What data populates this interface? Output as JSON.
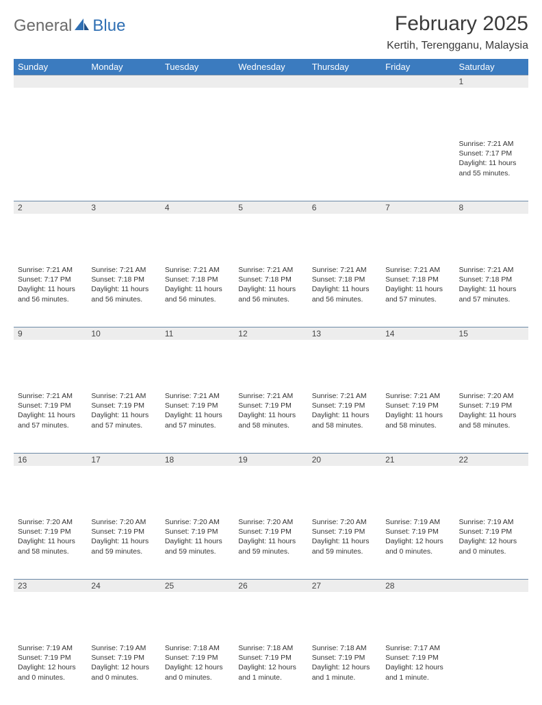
{
  "logo": {
    "text1": "General",
    "text2": "Blue"
  },
  "title": "February 2025",
  "location": "Kertih, Terengganu, Malaysia",
  "colors": {
    "header_bg": "#3b7bbf",
    "header_text": "#ffffff",
    "daynum_bg": "#ededed",
    "rule": "#6b88a6",
    "logo_gray": "#6a6a6a",
    "logo_blue": "#2f6fb3",
    "body_text": "#333333",
    "page_bg": "#ffffff"
  },
  "weekdays": [
    "Sunday",
    "Monday",
    "Tuesday",
    "Wednesday",
    "Thursday",
    "Friday",
    "Saturday"
  ],
  "weeks": [
    [
      null,
      null,
      null,
      null,
      null,
      null,
      {
        "n": "1",
        "sr": "Sunrise: 7:21 AM",
        "ss": "Sunset: 7:17 PM",
        "dl": "Daylight: 11 hours and 55 minutes."
      }
    ],
    [
      {
        "n": "2",
        "sr": "Sunrise: 7:21 AM",
        "ss": "Sunset: 7:17 PM",
        "dl": "Daylight: 11 hours and 56 minutes."
      },
      {
        "n": "3",
        "sr": "Sunrise: 7:21 AM",
        "ss": "Sunset: 7:18 PM",
        "dl": "Daylight: 11 hours and 56 minutes."
      },
      {
        "n": "4",
        "sr": "Sunrise: 7:21 AM",
        "ss": "Sunset: 7:18 PM",
        "dl": "Daylight: 11 hours and 56 minutes."
      },
      {
        "n": "5",
        "sr": "Sunrise: 7:21 AM",
        "ss": "Sunset: 7:18 PM",
        "dl": "Daylight: 11 hours and 56 minutes."
      },
      {
        "n": "6",
        "sr": "Sunrise: 7:21 AM",
        "ss": "Sunset: 7:18 PM",
        "dl": "Daylight: 11 hours and 56 minutes."
      },
      {
        "n": "7",
        "sr": "Sunrise: 7:21 AM",
        "ss": "Sunset: 7:18 PM",
        "dl": "Daylight: 11 hours and 57 minutes."
      },
      {
        "n": "8",
        "sr": "Sunrise: 7:21 AM",
        "ss": "Sunset: 7:18 PM",
        "dl": "Daylight: 11 hours and 57 minutes."
      }
    ],
    [
      {
        "n": "9",
        "sr": "Sunrise: 7:21 AM",
        "ss": "Sunset: 7:19 PM",
        "dl": "Daylight: 11 hours and 57 minutes."
      },
      {
        "n": "10",
        "sr": "Sunrise: 7:21 AM",
        "ss": "Sunset: 7:19 PM",
        "dl": "Daylight: 11 hours and 57 minutes."
      },
      {
        "n": "11",
        "sr": "Sunrise: 7:21 AM",
        "ss": "Sunset: 7:19 PM",
        "dl": "Daylight: 11 hours and 57 minutes."
      },
      {
        "n": "12",
        "sr": "Sunrise: 7:21 AM",
        "ss": "Sunset: 7:19 PM",
        "dl": "Daylight: 11 hours and 58 minutes."
      },
      {
        "n": "13",
        "sr": "Sunrise: 7:21 AM",
        "ss": "Sunset: 7:19 PM",
        "dl": "Daylight: 11 hours and 58 minutes."
      },
      {
        "n": "14",
        "sr": "Sunrise: 7:21 AM",
        "ss": "Sunset: 7:19 PM",
        "dl": "Daylight: 11 hours and 58 minutes."
      },
      {
        "n": "15",
        "sr": "Sunrise: 7:20 AM",
        "ss": "Sunset: 7:19 PM",
        "dl": "Daylight: 11 hours and 58 minutes."
      }
    ],
    [
      {
        "n": "16",
        "sr": "Sunrise: 7:20 AM",
        "ss": "Sunset: 7:19 PM",
        "dl": "Daylight: 11 hours and 58 minutes."
      },
      {
        "n": "17",
        "sr": "Sunrise: 7:20 AM",
        "ss": "Sunset: 7:19 PM",
        "dl": "Daylight: 11 hours and 59 minutes."
      },
      {
        "n": "18",
        "sr": "Sunrise: 7:20 AM",
        "ss": "Sunset: 7:19 PM",
        "dl": "Daylight: 11 hours and 59 minutes."
      },
      {
        "n": "19",
        "sr": "Sunrise: 7:20 AM",
        "ss": "Sunset: 7:19 PM",
        "dl": "Daylight: 11 hours and 59 minutes."
      },
      {
        "n": "20",
        "sr": "Sunrise: 7:20 AM",
        "ss": "Sunset: 7:19 PM",
        "dl": "Daylight: 11 hours and 59 minutes."
      },
      {
        "n": "21",
        "sr": "Sunrise: 7:19 AM",
        "ss": "Sunset: 7:19 PM",
        "dl": "Daylight: 12 hours and 0 minutes."
      },
      {
        "n": "22",
        "sr": "Sunrise: 7:19 AM",
        "ss": "Sunset: 7:19 PM",
        "dl": "Daylight: 12 hours and 0 minutes."
      }
    ],
    [
      {
        "n": "23",
        "sr": "Sunrise: 7:19 AM",
        "ss": "Sunset: 7:19 PM",
        "dl": "Daylight: 12 hours and 0 minutes."
      },
      {
        "n": "24",
        "sr": "Sunrise: 7:19 AM",
        "ss": "Sunset: 7:19 PM",
        "dl": "Daylight: 12 hours and 0 minutes."
      },
      {
        "n": "25",
        "sr": "Sunrise: 7:18 AM",
        "ss": "Sunset: 7:19 PM",
        "dl": "Daylight: 12 hours and 0 minutes."
      },
      {
        "n": "26",
        "sr": "Sunrise: 7:18 AM",
        "ss": "Sunset: 7:19 PM",
        "dl": "Daylight: 12 hours and 1 minute."
      },
      {
        "n": "27",
        "sr": "Sunrise: 7:18 AM",
        "ss": "Sunset: 7:19 PM",
        "dl": "Daylight: 12 hours and 1 minute."
      },
      {
        "n": "28",
        "sr": "Sunrise: 7:17 AM",
        "ss": "Sunset: 7:19 PM",
        "dl": "Daylight: 12 hours and 1 minute."
      },
      null
    ]
  ]
}
